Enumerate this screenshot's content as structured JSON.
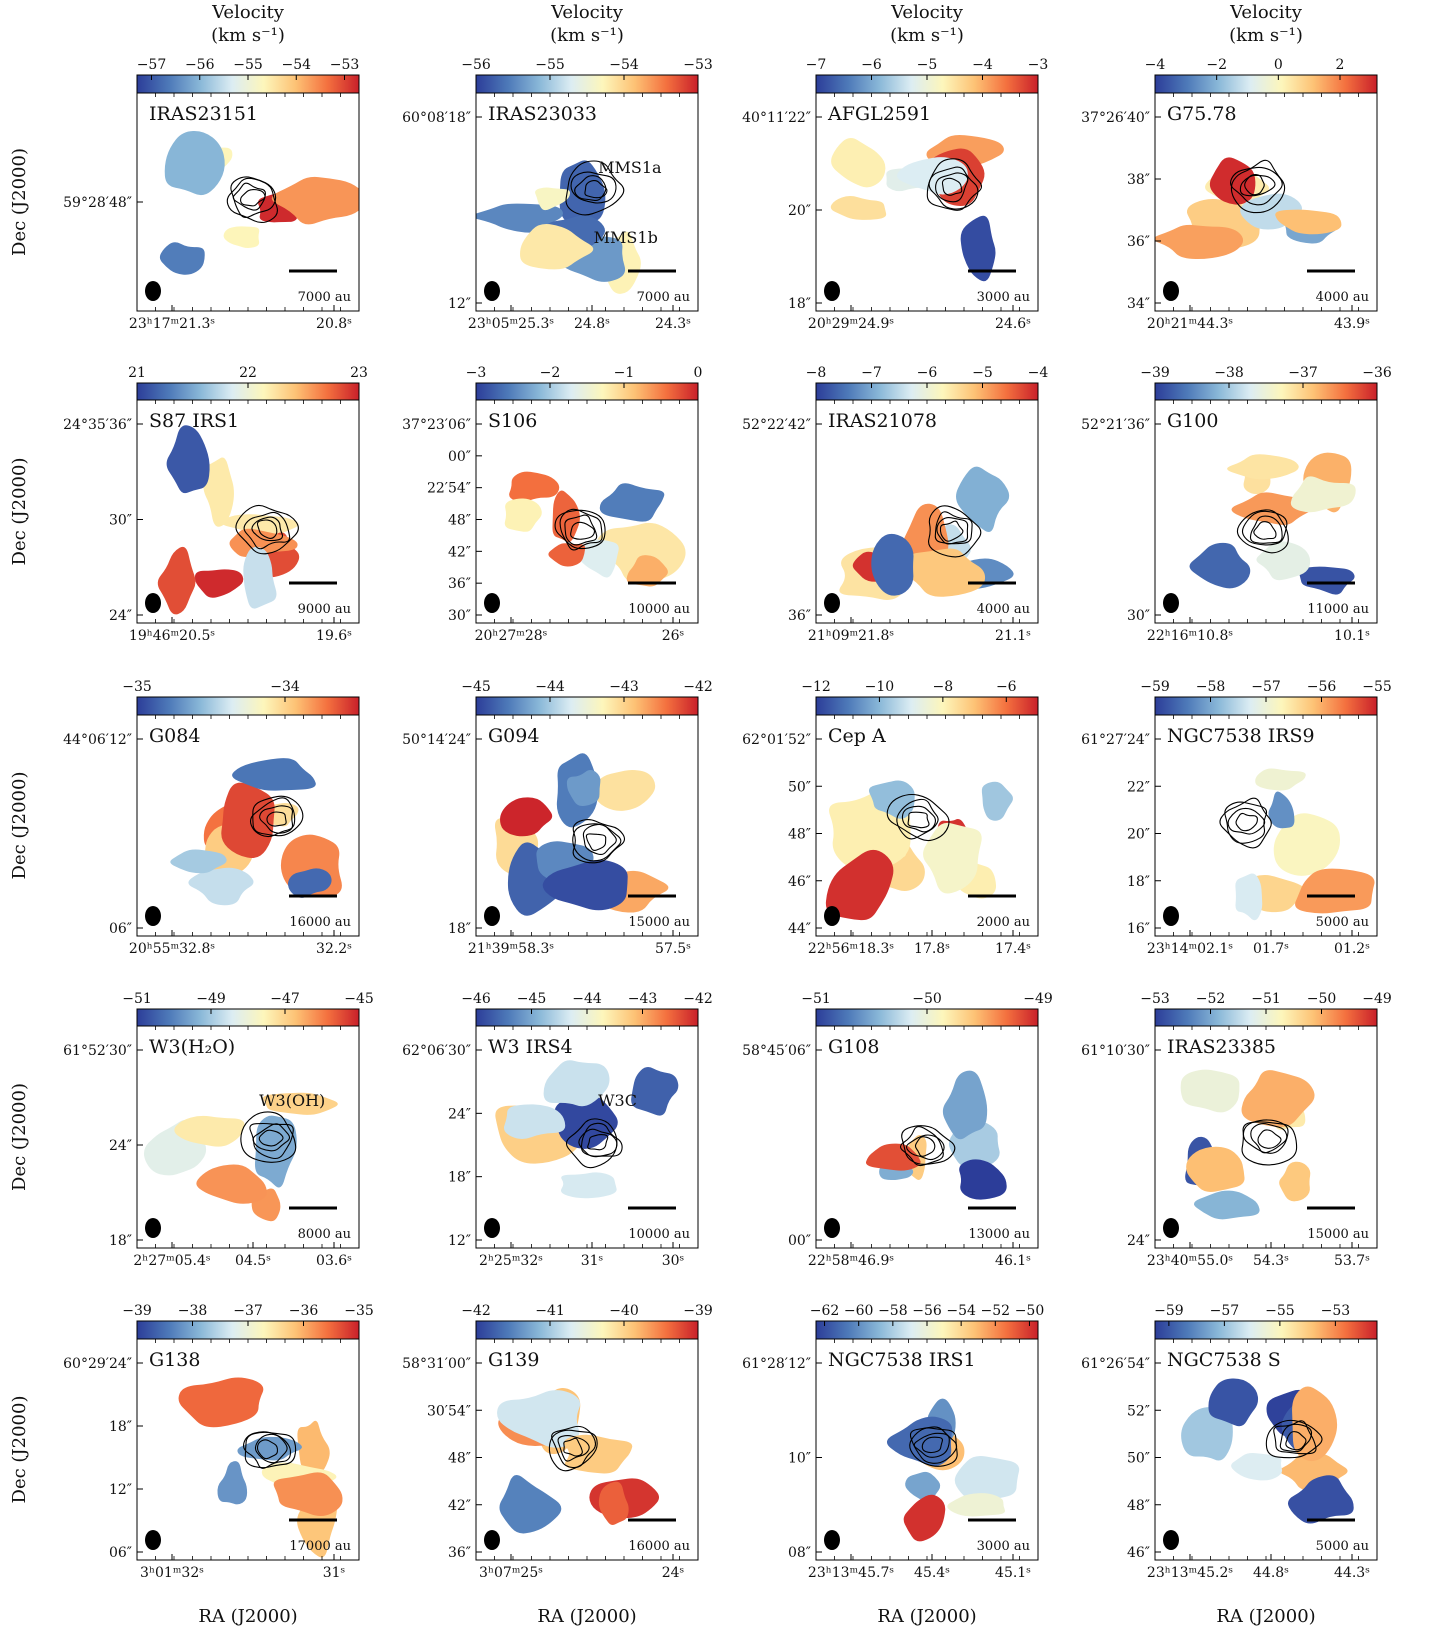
{
  "figure": {
    "column_header": [
      "Velocity",
      "(km s⁻¹)"
    ],
    "ylabel": "Dec (J2000)",
    "xlabel": "RA (J2000)"
  },
  "colormap": [
    "#2c3d99",
    "#4d79b8",
    "#8ab8d8",
    "#dcedf3",
    "#fdf6bb",
    "#fdc275",
    "#f4713f",
    "#c9202a"
  ],
  "chart_data": [
    {
      "type": "heatmap",
      "source": "IRAS23151",
      "cbar_ticks": [
        "−57",
        "−56",
        "−55",
        "−54",
        "−53"
      ],
      "vrange": [
        -57.3,
        -52.7
      ],
      "header": true,
      "yticks": [
        "59°28′48″"
      ],
      "xticks": [
        "23ʰ17ᵐ21.3ˢ",
        "20.8ˢ"
      ],
      "scale": "7000 au"
    },
    {
      "type": "heatmap",
      "source": "IRAS23033",
      "cbar_ticks": [
        "−56",
        "−55",
        "−54",
        "−53"
      ],
      "vrange": [
        -56,
        -53
      ],
      "header": true,
      "yticks": [
        "60°08′18″",
        "12″"
      ],
      "xticks": [
        "23ʰ05ᵐ25.3ˢ",
        "24.8ˢ",
        "24.3ˢ"
      ],
      "scale": "7000 au",
      "annotations": [
        "MMS1a",
        "MMS1b"
      ]
    },
    {
      "type": "heatmap",
      "source": "AFGL2591",
      "cbar_ticks": [
        "−7",
        "−6",
        "−5",
        "−4",
        "−3"
      ],
      "vrange": [
        -7,
        -3
      ],
      "header": true,
      "yticks": [
        "40°11′22″",
        "20″",
        "18″"
      ],
      "xticks": [
        "20ʰ29ᵐ24.9ˢ",
        "24.6ˢ"
      ],
      "scale": "3000 au"
    },
    {
      "type": "heatmap",
      "source": "G75.78",
      "cbar_ticks": [
        "−4",
        "−2",
        "0",
        "2"
      ],
      "vrange": [
        -4,
        3.2
      ],
      "header": true,
      "yticks": [
        "37°26′40″",
        "38″",
        "36″",
        "34″"
      ],
      "xticks": [
        "20ʰ21ᵐ44.3ˢ",
        "43.9ˢ"
      ],
      "scale": "4000 au"
    },
    {
      "type": "heatmap",
      "source": "S87 IRS1",
      "cbar_ticks": [
        "21",
        "22",
        "23"
      ],
      "vrange": [
        21,
        23
      ],
      "yticks": [
        "24°35′36″",
        "30″",
        "24″"
      ],
      "xticks": [
        "19ʰ46ᵐ20.5ˢ",
        "19.6ˢ"
      ],
      "scale": "9000 au"
    },
    {
      "type": "heatmap",
      "source": "S106",
      "cbar_ticks": [
        "−3",
        "−2",
        "−1",
        "0"
      ],
      "vrange": [
        -3,
        0
      ],
      "yticks": [
        "37°23′06″",
        "00″",
        "22′54″",
        "48″",
        "42″",
        "36″",
        "30″"
      ],
      "xticks": [
        "20ʰ27ᵐ28ˢ",
        "26ˢ"
      ],
      "scale": "10000 au"
    },
    {
      "type": "heatmap",
      "source": "IRAS21078",
      "cbar_ticks": [
        "−8",
        "−7",
        "−6",
        "−5",
        "−4"
      ],
      "vrange": [
        -8,
        -4
      ],
      "yticks": [
        "52°22′42″",
        "36″"
      ],
      "xticks": [
        "21ʰ09ᵐ21.8ˢ",
        "21.1ˢ"
      ],
      "scale": "4000 au"
    },
    {
      "type": "heatmap",
      "source": "G100",
      "cbar_ticks": [
        "−39",
        "−38",
        "−37",
        "−36"
      ],
      "vrange": [
        -39,
        -36
      ],
      "yticks": [
        "52°21′36″",
        "30″"
      ],
      "xticks": [
        "22ʰ16ᵐ10.8ˢ",
        "10.1ˢ"
      ],
      "scale": "11000 au"
    },
    {
      "type": "heatmap",
      "source": "G084",
      "cbar_ticks": [
        "−35",
        "−34"
      ],
      "vrange": [
        -35,
        -33.5
      ],
      "yticks": [
        "44°06′12″",
        "06″"
      ],
      "xticks": [
        "20ʰ55ᵐ32.8ˢ",
        "32.2ˢ"
      ],
      "scale": "16000 au"
    },
    {
      "type": "heatmap",
      "source": "G094",
      "cbar_ticks": [
        "−45",
        "−44",
        "−43",
        "−42"
      ],
      "vrange": [
        -45,
        -42
      ],
      "yticks": [
        "50°14′24″",
        "18″"
      ],
      "xticks": [
        "21ʰ39ᵐ58.3ˢ",
        "57.5ˢ"
      ],
      "scale": "15000 au"
    },
    {
      "type": "heatmap",
      "source": "Cep A",
      "cbar_ticks": [
        "−12",
        "−10",
        "−8",
        "−6"
      ],
      "vrange": [
        -12,
        -5
      ],
      "yticks": [
        "62°01′52″",
        "50″",
        "48″",
        "46″",
        "44″"
      ],
      "xticks": [
        "22ʰ56ᵐ18.3ˢ",
        "17.8ˢ",
        "17.4ˢ"
      ],
      "scale": "2000 au"
    },
    {
      "type": "heatmap",
      "source": "NGC7538 IRS9",
      "cbar_ticks": [
        "−59",
        "−58",
        "−57",
        "−56",
        "−55"
      ],
      "vrange": [
        -59,
        -55
      ],
      "yticks": [
        "61°27′24″",
        "22″",
        "20″",
        "18″",
        "16″"
      ],
      "xticks": [
        "23ʰ14ᵐ02.1ˢ",
        "01.7ˢ",
        "01.2ˢ"
      ],
      "scale": "5000 au"
    },
    {
      "type": "heatmap",
      "source": "W3(H₂O)",
      "cbar_ticks": [
        "−51",
        "−49",
        "−47",
        "−45"
      ],
      "vrange": [
        -51,
        -45
      ],
      "yticks": [
        "61°52′30″",
        "24″",
        "18″"
      ],
      "xticks": [
        "2ʰ27ᵐ05.4ˢ",
        "04.5ˢ",
        "03.6ˢ"
      ],
      "scale": "8000 au",
      "annotations": [
        "W3(OH)"
      ]
    },
    {
      "type": "heatmap",
      "source": "W3 IRS4",
      "cbar_ticks": [
        "−46",
        "−45",
        "−44",
        "−43",
        "−42"
      ],
      "vrange": [
        -46,
        -42
      ],
      "yticks": [
        "62°06′30″",
        "24″",
        "18″",
        "12″"
      ],
      "xticks": [
        "2ʰ25ᵐ32ˢ",
        "31ˢ",
        "30ˢ"
      ],
      "scale": "10000 au",
      "annotations": [
        "W3C"
      ]
    },
    {
      "type": "heatmap",
      "source": "G108",
      "cbar_ticks": [
        "−51",
        "−50",
        "−49"
      ],
      "vrange": [
        -51,
        -49
      ],
      "yticks": [
        "58°45′06″",
        "00″"
      ],
      "xticks": [
        "22ʰ58ᵐ46.9ˢ",
        "46.1ˢ"
      ],
      "scale": "13000 au"
    },
    {
      "type": "heatmap",
      "source": "IRAS23385",
      "cbar_ticks": [
        "−53",
        "−52",
        "−51",
        "−50",
        "−49"
      ],
      "vrange": [
        -53,
        -49
      ],
      "yticks": [
        "61°10′30″",
        "24″"
      ],
      "xticks": [
        "23ʰ40ᵐ55.0ˢ",
        "54.3ˢ",
        "53.7ˢ"
      ],
      "scale": "15000 au"
    },
    {
      "type": "heatmap",
      "source": "G138",
      "cbar_ticks": [
        "−39",
        "−38",
        "−37",
        "−36",
        "−35"
      ],
      "vrange": [
        -39,
        -35
      ],
      "footer": true,
      "yticks": [
        "60°29′24″",
        "18″",
        "12″",
        "06″"
      ],
      "xticks": [
        "3ʰ01ᵐ32ˢ",
        "31ˢ"
      ],
      "scale": "17000 au"
    },
    {
      "type": "heatmap",
      "source": "G139",
      "cbar_ticks": [
        "−42",
        "−41",
        "−40",
        "−39"
      ],
      "vrange": [
        -42,
        -39
      ],
      "footer": true,
      "yticks": [
        "58°31′00″",
        "30′54″",
        "48″",
        "42″",
        "36″"
      ],
      "xticks": [
        "3ʰ07ᵐ25ˢ",
        "24ˢ"
      ],
      "scale": "16000 au"
    },
    {
      "type": "heatmap",
      "source": "NGC7538 IRS1",
      "cbar_ticks": [
        "−62",
        "−60",
        "−58",
        "−56",
        "−54",
        "−52",
        "−50"
      ],
      "vrange": [
        -62.5,
        -49.5
      ],
      "footer": true,
      "yticks": [
        "61°28′12″",
        "10″",
        "08″"
      ],
      "xticks": [
        "23ʰ13ᵐ45.7ˢ",
        "45.4ˢ",
        "45.1ˢ"
      ],
      "scale": "3000 au"
    },
    {
      "type": "heatmap",
      "source": "NGC7538 S",
      "cbar_ticks": [
        "−59",
        "−57",
        "−55",
        "−53"
      ],
      "vrange": [
        -59.5,
        -51.5
      ],
      "footer": true,
      "yticks": [
        "61°26′54″",
        "52″",
        "50″",
        "48″",
        "46″"
      ],
      "xticks": [
        "23ʰ13ᵐ45.2ˢ",
        "44.8ˢ",
        "44.3ˢ"
      ],
      "scale": "5000 au"
    }
  ]
}
